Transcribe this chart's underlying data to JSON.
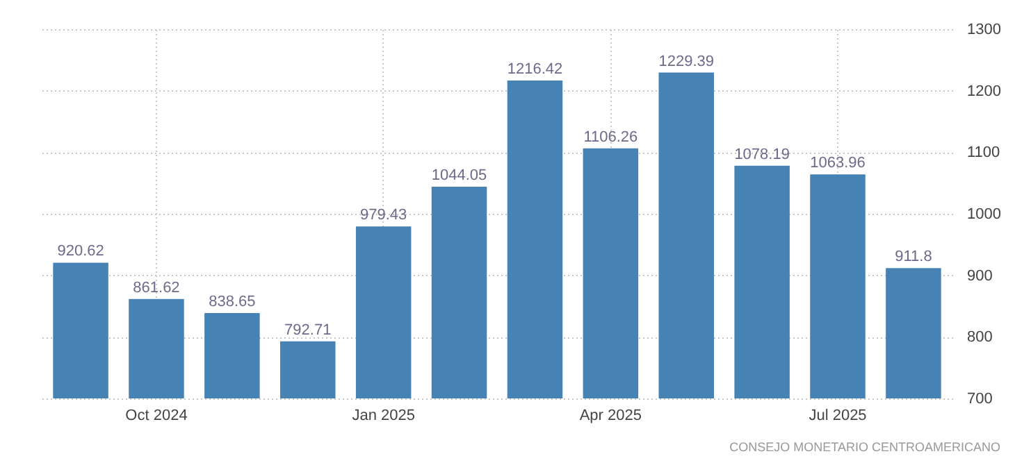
{
  "chart_data": {
    "type": "bar",
    "categories": [
      null,
      "Oct 2024",
      null,
      null,
      "Jan 2025",
      null,
      null,
      "Apr 2025",
      null,
      null,
      "Jul 2025",
      null
    ],
    "values": [
      920.62,
      861.62,
      838.65,
      792.71,
      979.43,
      1044.05,
      1216.42,
      1106.26,
      1229.39,
      1078.19,
      1063.96,
      911.8
    ],
    "color": "#4682b4",
    "ylim": [
      700,
      1300
    ],
    "yticks": [
      700,
      800,
      900,
      1000,
      1100,
      1200,
      1300
    ],
    "grid": true,
    "data_labels": true,
    "annotations": [
      "CONSEJO MONETARIO CENTROAMERICANO"
    ]
  }
}
